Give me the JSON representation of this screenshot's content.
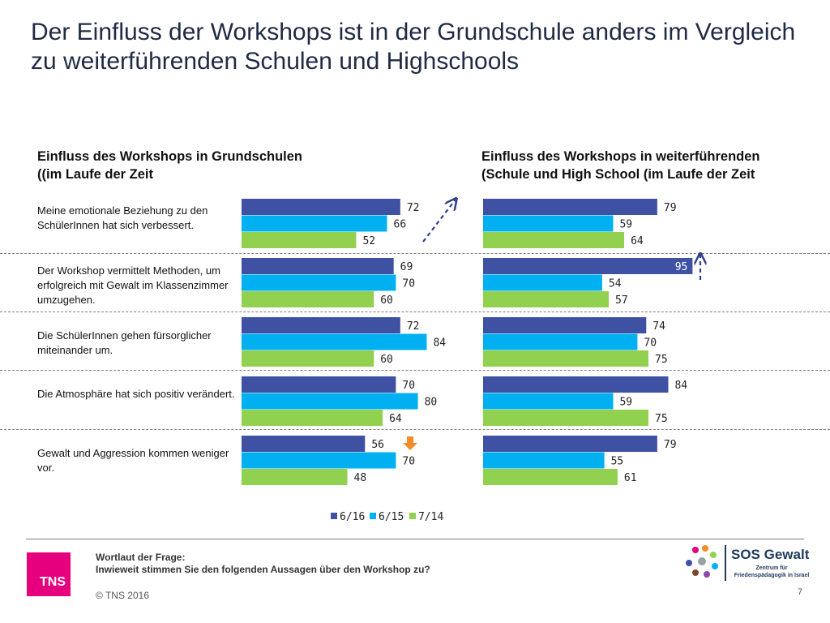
{
  "title": "Der Einfluss der Workshops ist in der Grundschule anders im Vergleich zu weiterführenden Schulen und Highschools",
  "left_chart": {
    "heading_line1": "Einfluss des Workshops in Grundschulen",
    "heading_line2": "((im Laufe der Zeit"
  },
  "right_chart": {
    "heading_line1": "Einfluss des Workshops in weiterführenden",
    "heading_line2": "(Schule und High School (im Laufe der Zeit"
  },
  "statements": [
    {
      "text": "Meine emotionale Beziehung zu den SchülerInnen hat sich verbessert."
    },
    {
      "text": "Der Workshop vermittelt Methoden, um erfolgreich mit Gewalt  im Klassenzimmer umzugehen."
    },
    {
      "text": "Die SchülerInnen gehen fürsorglicher miteinander um."
    },
    {
      "text": "Die Atmosphäre hat sich positiv verändert."
    },
    {
      "text": "Gewalt und Aggression kommen weniger vor."
    }
  ],
  "chart_data": [
    {
      "type": "bar",
      "orientation": "horizontal",
      "title": "Einfluss des Workshops in Grundschulen ((im Laufe der Zeit",
      "categories": [
        "Meine emotionale Beziehung zu den SchülerInnen hat sich verbessert.",
        "Der Workshop vermittelt Methoden, um erfolgreich mit Gewalt  im Klassenzimmer umzugehen.",
        "Die SchülerInnen gehen fürsorglicher miteinander um.",
        "Die Atmosphäre hat sich positiv verändert.",
        "Gewalt und Aggression kommen weniger vor."
      ],
      "series": [
        {
          "name": "6/16",
          "values": [
            72,
            69,
            72,
            70,
            56
          ]
        },
        {
          "name": "6/15",
          "values": [
            66,
            70,
            84,
            80,
            70
          ]
        },
        {
          "name": "7/14",
          "values": [
            52,
            60,
            60,
            64,
            48
          ]
        }
      ],
      "xlim": [
        0,
        100
      ],
      "annotations": [
        {
          "category_index": 0,
          "type": "trend-up-arrow"
        },
        {
          "category_index": 4,
          "type": "down-arrow"
        }
      ]
    },
    {
      "type": "bar",
      "orientation": "horizontal",
      "title": "Einfluss des Workshops in weiterführenden (Schule und High School (im Laufe der Zeit",
      "categories": [
        "Meine emotionale Beziehung zu den SchülerInnen hat sich verbessert.",
        "Der Workshop vermittelt Methoden, um erfolgreich mit Gewalt  im Klassenzimmer umzugehen.",
        "Die SchülerInnen gehen fürsorglicher miteinander um.",
        "Die Atmosphäre hat sich positiv verändert.",
        "Gewalt und Aggression kommen weniger vor."
      ],
      "series": [
        {
          "name": "6/16",
          "values": [
            79,
            95,
            74,
            84,
            79
          ]
        },
        {
          "name": "6/15",
          "values": [
            59,
            54,
            70,
            59,
            55
          ]
        },
        {
          "name": "7/14",
          "values": [
            64,
            57,
            75,
            75,
            61
          ]
        }
      ],
      "xlim": [
        0,
        100
      ],
      "annotations": [
        {
          "category_index": 1,
          "type": "up-arrow"
        }
      ]
    }
  ],
  "legend": [
    {
      "label": "6/16",
      "color": "#3f51a3"
    },
    {
      "label": "6/15",
      "color": "#00b0f0"
    },
    {
      "label": "7/14",
      "color": "#92d050"
    }
  ],
  "colors": {
    "series": [
      "#3f51a3",
      "#00b0f0",
      "#92d050"
    ],
    "arrow_dashed": "#2f3f8f",
    "arrow_orange": "#f28c28",
    "brand_tns": "#e6007e"
  },
  "footer": {
    "question_label": "Wortlaut der Frage:",
    "question_text": "Inwieweit stimmen Sie den folgenden Aussagen über den Workshop zu?",
    "copyright": "© TNS 2016",
    "page_number": "7",
    "tns_logo_text": "TNS",
    "sos_title": "SOS Gewalt",
    "sos_subtitle": "Zentrum für Friedenspädagogik in Israel"
  }
}
